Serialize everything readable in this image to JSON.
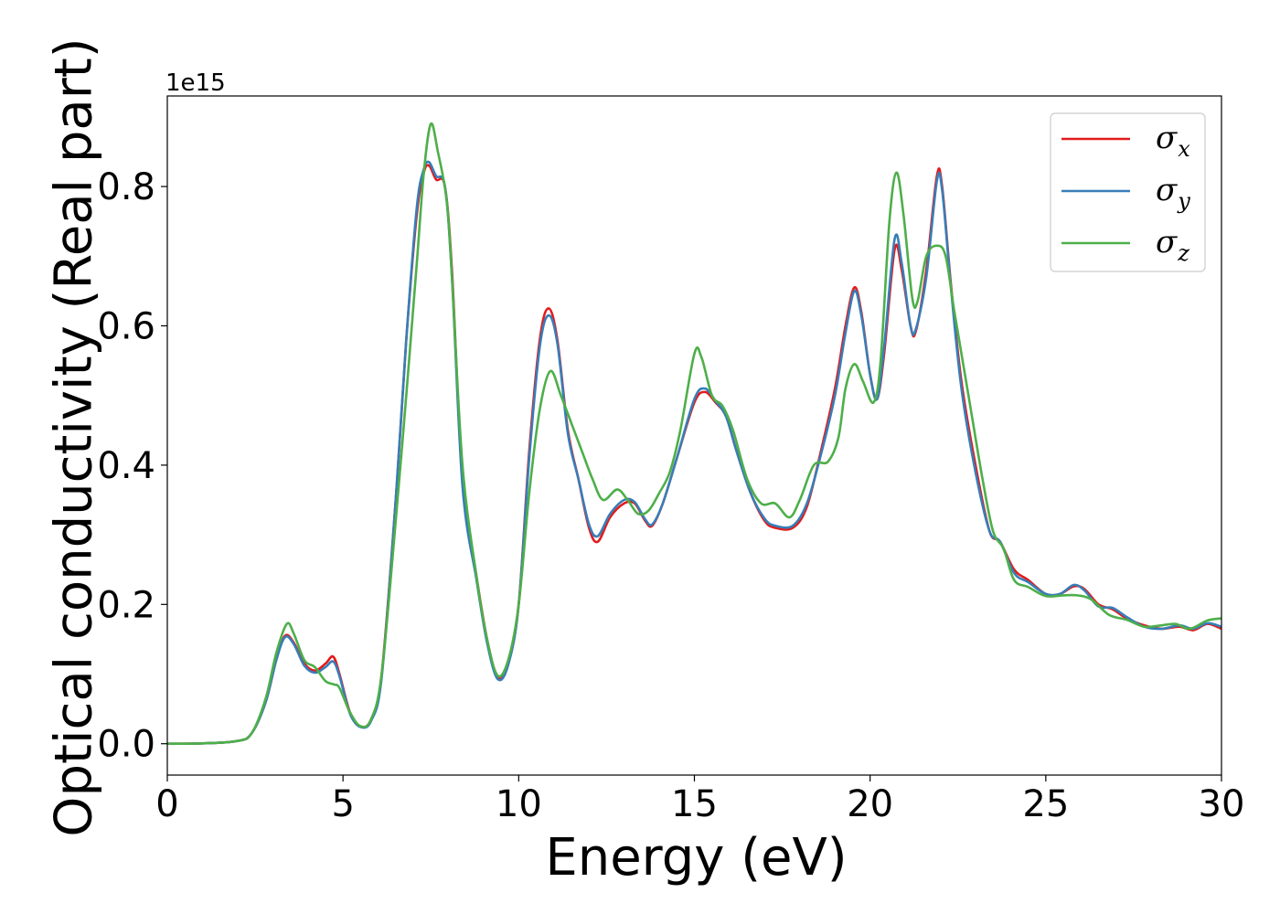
{
  "chart_data": {
    "type": "line",
    "title": "",
    "xlabel": "Energy (eV)",
    "ylabel": "Optical conductivity (Real part)",
    "y_offset_label": "1e15",
    "xlim": [
      0,
      30
    ],
    "ylim": [
      -0.045,
      0.93
    ],
    "xticks": [
      0,
      5,
      10,
      15,
      20,
      25,
      30
    ],
    "xtick_labels": [
      "0",
      "5",
      "10",
      "15",
      "20",
      "25",
      "30"
    ],
    "yticks": [
      0.0,
      0.2,
      0.4,
      0.6,
      0.8
    ],
    "ytick_labels": [
      "0.0",
      "0.2",
      "0.4",
      "0.6",
      "0.8"
    ],
    "grid": false,
    "legend_position": "top-right",
    "series": [
      {
        "name": "σx",
        "symbol": "σ",
        "subscript": "x",
        "color": "#e41a1c",
        "points": [
          [
            0,
            0
          ],
          [
            1,
            0.0005
          ],
          [
            2,
            0.004
          ],
          [
            2.4,
            0.015
          ],
          [
            2.8,
            0.06
          ],
          [
            3.1,
            0.12
          ],
          [
            3.35,
            0.155
          ],
          [
            3.6,
            0.145
          ],
          [
            3.9,
            0.115
          ],
          [
            4.2,
            0.105
          ],
          [
            4.5,
            0.115
          ],
          [
            4.72,
            0.125
          ],
          [
            4.9,
            0.1
          ],
          [
            5.2,
            0.045
          ],
          [
            5.5,
            0.025
          ],
          [
            5.8,
            0.035
          ],
          [
            6.1,
            0.1
          ],
          [
            6.5,
            0.35
          ],
          [
            6.8,
            0.58
          ],
          [
            7.1,
            0.76
          ],
          [
            7.3,
            0.82
          ],
          [
            7.45,
            0.83
          ],
          [
            7.65,
            0.81
          ],
          [
            7.9,
            0.8
          ],
          [
            8.1,
            0.68
          ],
          [
            8.4,
            0.38
          ],
          [
            8.8,
            0.24
          ],
          [
            9.1,
            0.15
          ],
          [
            9.4,
            0.095
          ],
          [
            9.7,
            0.115
          ],
          [
            10.0,
            0.2
          ],
          [
            10.3,
            0.42
          ],
          [
            10.6,
            0.58
          ],
          [
            10.85,
            0.625
          ],
          [
            11.1,
            0.58
          ],
          [
            11.4,
            0.45
          ],
          [
            11.7,
            0.38
          ],
          [
            12.0,
            0.31
          ],
          [
            12.25,
            0.29
          ],
          [
            12.6,
            0.325
          ],
          [
            13.0,
            0.345
          ],
          [
            13.3,
            0.345
          ],
          [
            13.6,
            0.32
          ],
          [
            13.8,
            0.313
          ],
          [
            14.1,
            0.345
          ],
          [
            14.5,
            0.41
          ],
          [
            15.0,
            0.49
          ],
          [
            15.3,
            0.505
          ],
          [
            15.6,
            0.49
          ],
          [
            15.9,
            0.47
          ],
          [
            16.2,
            0.42
          ],
          [
            16.6,
            0.36
          ],
          [
            17.0,
            0.32
          ],
          [
            17.3,
            0.31
          ],
          [
            17.8,
            0.31
          ],
          [
            18.2,
            0.34
          ],
          [
            18.6,
            0.42
          ],
          [
            19.0,
            0.51
          ],
          [
            19.3,
            0.6
          ],
          [
            19.55,
            0.655
          ],
          [
            19.75,
            0.62
          ],
          [
            20.0,
            0.53
          ],
          [
            20.2,
            0.495
          ],
          [
            20.4,
            0.56
          ],
          [
            20.7,
            0.71
          ],
          [
            20.9,
            0.68
          ],
          [
            21.15,
            0.6
          ],
          [
            21.3,
            0.592
          ],
          [
            21.6,
            0.68
          ],
          [
            21.9,
            0.815
          ],
          [
            22.05,
            0.8
          ],
          [
            22.3,
            0.66
          ],
          [
            22.6,
            0.52
          ],
          [
            23.0,
            0.4
          ],
          [
            23.4,
            0.305
          ],
          [
            23.7,
            0.29
          ],
          [
            24.1,
            0.25
          ],
          [
            24.5,
            0.235
          ],
          [
            25.0,
            0.215
          ],
          [
            25.4,
            0.215
          ],
          [
            25.8,
            0.226
          ],
          [
            26.1,
            0.222
          ],
          [
            26.5,
            0.2
          ],
          [
            26.9,
            0.193
          ],
          [
            27.3,
            0.18
          ],
          [
            27.8,
            0.17
          ],
          [
            28.3,
            0.165
          ],
          [
            28.8,
            0.168
          ],
          [
            29.2,
            0.163
          ],
          [
            29.6,
            0.172
          ],
          [
            30,
            0.165
          ]
        ]
      },
      {
        "name": "σy",
        "symbol": "σ",
        "subscript": "y",
        "color": "#377eb8",
        "points": [
          [
            0,
            0
          ],
          [
            1,
            0.0005
          ],
          [
            2,
            0.004
          ],
          [
            2.4,
            0.015
          ],
          [
            2.8,
            0.06
          ],
          [
            3.1,
            0.12
          ],
          [
            3.35,
            0.153
          ],
          [
            3.6,
            0.143
          ],
          [
            3.9,
            0.112
          ],
          [
            4.2,
            0.102
          ],
          [
            4.5,
            0.11
          ],
          [
            4.72,
            0.118
          ],
          [
            4.9,
            0.097
          ],
          [
            5.2,
            0.043
          ],
          [
            5.5,
            0.024
          ],
          [
            5.8,
            0.033
          ],
          [
            6.1,
            0.095
          ],
          [
            6.5,
            0.35
          ],
          [
            6.8,
            0.58
          ],
          [
            7.1,
            0.77
          ],
          [
            7.3,
            0.825
          ],
          [
            7.45,
            0.835
          ],
          [
            7.65,
            0.815
          ],
          [
            7.9,
            0.8
          ],
          [
            8.1,
            0.67
          ],
          [
            8.4,
            0.37
          ],
          [
            8.8,
            0.235
          ],
          [
            9.1,
            0.145
          ],
          [
            9.4,
            0.093
          ],
          [
            9.7,
            0.113
          ],
          [
            10.0,
            0.2
          ],
          [
            10.3,
            0.41
          ],
          [
            10.6,
            0.57
          ],
          [
            10.85,
            0.615
          ],
          [
            11.1,
            0.575
          ],
          [
            11.4,
            0.445
          ],
          [
            11.7,
            0.38
          ],
          [
            12.0,
            0.315
          ],
          [
            12.25,
            0.298
          ],
          [
            12.6,
            0.33
          ],
          [
            13.0,
            0.35
          ],
          [
            13.3,
            0.347
          ],
          [
            13.6,
            0.322
          ],
          [
            13.8,
            0.315
          ],
          [
            14.1,
            0.345
          ],
          [
            14.5,
            0.41
          ],
          [
            15.0,
            0.495
          ],
          [
            15.3,
            0.51
          ],
          [
            15.6,
            0.492
          ],
          [
            15.9,
            0.47
          ],
          [
            16.2,
            0.42
          ],
          [
            16.6,
            0.36
          ],
          [
            17.0,
            0.323
          ],
          [
            17.3,
            0.313
          ],
          [
            17.8,
            0.313
          ],
          [
            18.2,
            0.345
          ],
          [
            18.6,
            0.415
          ],
          [
            19.0,
            0.5
          ],
          [
            19.3,
            0.59
          ],
          [
            19.55,
            0.65
          ],
          [
            19.75,
            0.615
          ],
          [
            20.0,
            0.53
          ],
          [
            20.2,
            0.495
          ],
          [
            20.4,
            0.57
          ],
          [
            20.7,
            0.725
          ],
          [
            20.9,
            0.69
          ],
          [
            21.15,
            0.6
          ],
          [
            21.3,
            0.595
          ],
          [
            21.6,
            0.67
          ],
          [
            21.9,
            0.808
          ],
          [
            22.05,
            0.795
          ],
          [
            22.3,
            0.655
          ],
          [
            22.6,
            0.51
          ],
          [
            23.0,
            0.39
          ],
          [
            23.4,
            0.305
          ],
          [
            23.7,
            0.29
          ],
          [
            24.1,
            0.245
          ],
          [
            24.5,
            0.232
          ],
          [
            25.0,
            0.215
          ],
          [
            25.4,
            0.215
          ],
          [
            25.8,
            0.228
          ],
          [
            26.1,
            0.22
          ],
          [
            26.5,
            0.197
          ],
          [
            26.9,
            0.195
          ],
          [
            27.3,
            0.182
          ],
          [
            27.8,
            0.168
          ],
          [
            28.3,
            0.165
          ],
          [
            28.8,
            0.17
          ],
          [
            29.2,
            0.165
          ],
          [
            29.6,
            0.173
          ],
          [
            30,
            0.168
          ]
        ]
      },
      {
        "name": "σz",
        "symbol": "σ",
        "subscript": "z",
        "color": "#4daf4a",
        "points": [
          [
            0,
            0
          ],
          [
            1,
            0.0005
          ],
          [
            2,
            0.004
          ],
          [
            2.4,
            0.015
          ],
          [
            2.8,
            0.065
          ],
          [
            3.1,
            0.13
          ],
          [
            3.4,
            0.172
          ],
          [
            3.6,
            0.158
          ],
          [
            3.9,
            0.12
          ],
          [
            4.2,
            0.11
          ],
          [
            4.5,
            0.09
          ],
          [
            4.75,
            0.085
          ],
          [
            4.9,
            0.08
          ],
          [
            5.2,
            0.045
          ],
          [
            5.5,
            0.025
          ],
          [
            5.8,
            0.035
          ],
          [
            6.1,
            0.1
          ],
          [
            6.5,
            0.32
          ],
          [
            6.8,
            0.5
          ],
          [
            7.1,
            0.69
          ],
          [
            7.3,
            0.82
          ],
          [
            7.5,
            0.89
          ],
          [
            7.7,
            0.85
          ],
          [
            7.95,
            0.78
          ],
          [
            8.1,
            0.67
          ],
          [
            8.4,
            0.4
          ],
          [
            8.8,
            0.24
          ],
          [
            9.1,
            0.15
          ],
          [
            9.4,
            0.098
          ],
          [
            9.7,
            0.12
          ],
          [
            10.0,
            0.2
          ],
          [
            10.3,
            0.36
          ],
          [
            10.6,
            0.48
          ],
          [
            10.9,
            0.535
          ],
          [
            11.2,
            0.5
          ],
          [
            11.5,
            0.46
          ],
          [
            11.8,
            0.42
          ],
          [
            12.1,
            0.38
          ],
          [
            12.4,
            0.35
          ],
          [
            12.8,
            0.365
          ],
          [
            13.1,
            0.35
          ],
          [
            13.4,
            0.33
          ],
          [
            13.7,
            0.335
          ],
          [
            14.0,
            0.36
          ],
          [
            14.3,
            0.39
          ],
          [
            14.6,
            0.45
          ],
          [
            15.0,
            0.56
          ],
          [
            15.2,
            0.555
          ],
          [
            15.5,
            0.5
          ],
          [
            15.8,
            0.485
          ],
          [
            16.1,
            0.45
          ],
          [
            16.5,
            0.38
          ],
          [
            16.9,
            0.345
          ],
          [
            17.3,
            0.345
          ],
          [
            17.7,
            0.325
          ],
          [
            18.0,
            0.35
          ],
          [
            18.4,
            0.4
          ],
          [
            18.8,
            0.405
          ],
          [
            19.1,
            0.44
          ],
          [
            19.3,
            0.51
          ],
          [
            19.55,
            0.545
          ],
          [
            19.8,
            0.52
          ],
          [
            20.1,
            0.49
          ],
          [
            20.3,
            0.55
          ],
          [
            20.55,
            0.75
          ],
          [
            20.75,
            0.82
          ],
          [
            20.95,
            0.76
          ],
          [
            21.2,
            0.64
          ],
          [
            21.35,
            0.635
          ],
          [
            21.6,
            0.7
          ],
          [
            21.9,
            0.715
          ],
          [
            22.15,
            0.7
          ],
          [
            22.4,
            0.62
          ],
          [
            22.8,
            0.5
          ],
          [
            23.2,
            0.38
          ],
          [
            23.5,
            0.305
          ],
          [
            23.8,
            0.28
          ],
          [
            24.1,
            0.235
          ],
          [
            24.5,
            0.225
          ],
          [
            25.0,
            0.212
          ],
          [
            25.5,
            0.213
          ],
          [
            25.9,
            0.213
          ],
          [
            26.3,
            0.207
          ],
          [
            26.8,
            0.185
          ],
          [
            27.3,
            0.178
          ],
          [
            27.8,
            0.168
          ],
          [
            28.3,
            0.17
          ],
          [
            28.7,
            0.172
          ],
          [
            29.1,
            0.165
          ],
          [
            29.6,
            0.177
          ],
          [
            30,
            0.18
          ]
        ]
      }
    ]
  }
}
